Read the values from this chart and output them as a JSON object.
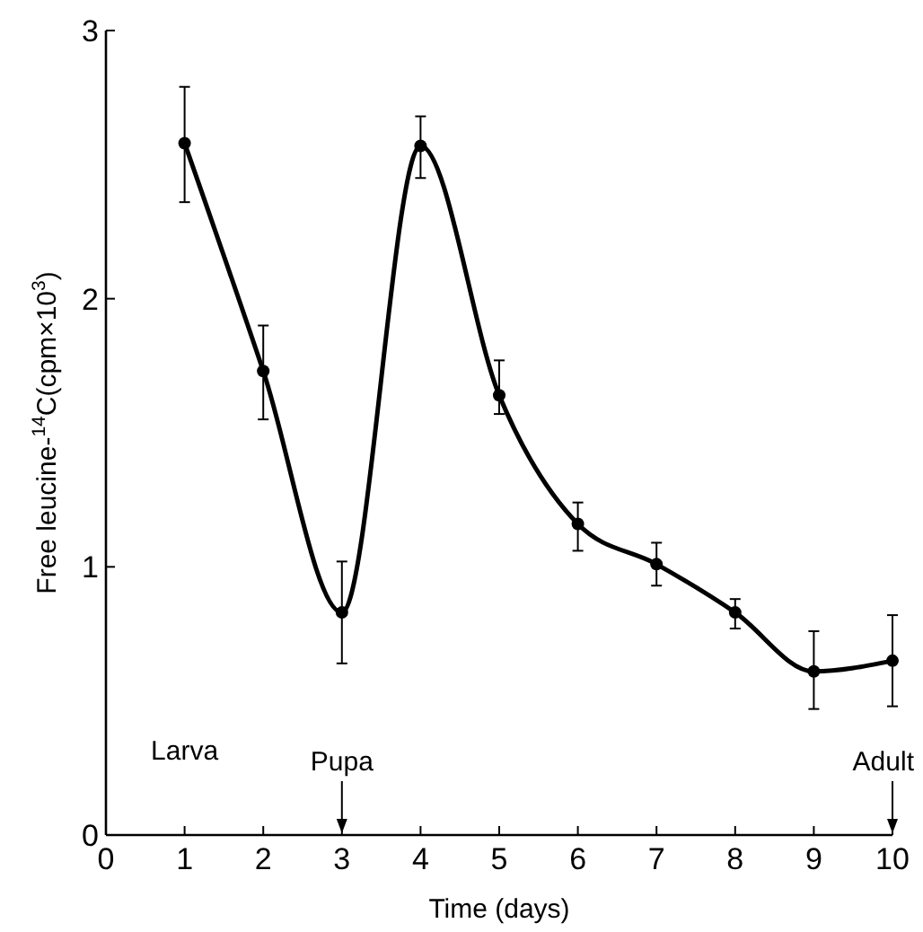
{
  "chart_data": {
    "type": "line",
    "xlabel": "Time (days)",
    "ylabel": "Free leucine-$^{14}$C(cpm×10$^{3}$)",
    "x": [
      1,
      2,
      3,
      4,
      5,
      6,
      7,
      8,
      9,
      10
    ],
    "series": [
      {
        "color": "#000000",
        "values": [
          2.58,
          1.73,
          0.83,
          2.57,
          1.64,
          1.16,
          1.01,
          0.83,
          0.61,
          0.65
        ],
        "errors": [
          [
            2.36,
            2.79
          ],
          [
            1.55,
            1.9
          ],
          [
            0.64,
            1.02
          ],
          [
            2.45,
            2.68
          ],
          [
            1.57,
            1.77
          ],
          [
            1.06,
            1.24
          ],
          [
            0.93,
            1.09
          ],
          [
            0.77,
            0.88
          ],
          [
            0.47,
            0.76
          ],
          [
            0.48,
            0.82
          ]
        ]
      }
    ],
    "xlim": [
      0,
      10
    ],
    "xticks": [
      0,
      1,
      2,
      3,
      4,
      5,
      6,
      7,
      8,
      9,
      10
    ],
    "ylim": [
      0,
      3
    ],
    "yticks": [
      0,
      1,
      2,
      3
    ],
    "marker": "circle",
    "line_style": "solid",
    "grid": false,
    "annotations": [
      "Larva",
      "Pupa",
      "Adult"
    ]
  }
}
